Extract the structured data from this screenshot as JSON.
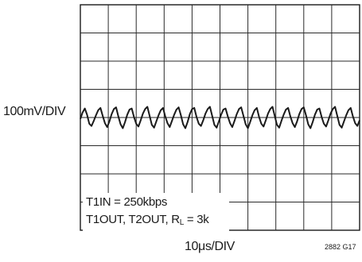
{
  "chart_data": {
    "type": "line",
    "title": "",
    "ylabel": "100mV/DIV",
    "xlabel": "10μs/DIV",
    "figure_code": "2882 G17",
    "grid": true,
    "divisions": {
      "x": 10,
      "y": 8
    },
    "xlim": [
      0,
      100
    ],
    "ylim": [
      -400,
      400
    ],
    "x_unit": "μs",
    "y_unit": "mV",
    "annotations": [
      {
        "text": "T1IN = 250kbps"
      },
      {
        "prefix": "T1OUT, T2OUT, R",
        "subscript": "L",
        "suffix": " = 3k"
      }
    ],
    "series": [
      {
        "x": [
          0,
          0.8,
          1.6,
          2.4,
          3.2,
          4.0,
          4.8,
          5.6,
          6.4,
          7.2,
          8.0,
          8.8,
          9.6,
          10.4,
          11.2,
          12.0,
          12.8,
          13.6,
          14.4,
          15.2,
          16.0,
          16.8,
          17.6,
          18.4,
          19.2,
          20.0,
          20.8,
          21.6,
          22.4,
          23.2,
          24.0,
          24.8,
          25.6,
          26.4,
          27.2,
          28.0,
          28.8,
          29.6,
          30.4,
          31.2,
          32.0,
          32.8,
          33.6,
          34.4,
          35.2,
          36.0,
          36.8,
          37.6,
          38.4,
          39.2,
          40.0,
          40.8,
          41.6,
          42.4,
          43.2,
          44.0,
          44.8,
          45.6,
          46.4,
          47.2,
          48.0,
          48.8,
          49.6,
          50.4,
          51.2,
          52.0,
          52.8,
          53.6,
          54.4,
          55.2,
          56.0,
          56.8,
          57.6,
          58.4,
          59.2,
          60.0,
          60.8,
          61.6,
          62.4,
          63.2,
          64.0,
          64.8,
          65.6,
          66.4,
          67.2,
          68.0,
          68.8,
          69.6,
          70.4,
          71.2,
          72.0,
          72.8,
          73.6,
          74.4,
          75.2,
          76.0,
          76.8,
          77.6,
          78.4,
          79.2,
          80.0,
          80.8,
          81.6,
          82.4,
          83.2,
          84.0,
          84.8,
          85.6,
          86.4,
          87.2,
          88.0,
          88.8,
          89.6,
          90.4,
          91.2,
          92.0,
          92.8,
          93.6,
          94.4,
          95.2,
          96.0,
          96.8,
          97.6,
          98.4,
          99.2,
          100.0
        ],
        "y": [
          -5,
          18,
          32,
          10,
          -22,
          -30,
          -12,
          8,
          26,
          34,
          6,
          -20,
          -34,
          -14,
          12,
          30,
          36,
          4,
          -24,
          -38,
          -16,
          10,
          28,
          32,
          2,
          -22,
          -32,
          -10,
          14,
          30,
          38,
          6,
          -26,
          -36,
          -14,
          8,
          26,
          34,
          4,
          -20,
          -34,
          -12,
          10,
          28,
          36,
          8,
          -24,
          -38,
          -16,
          12,
          30,
          34,
          2,
          -22,
          -30,
          -10,
          14,
          30,
          38,
          6,
          -26,
          -36,
          -14,
          10,
          28,
          32,
          4,
          -20,
          -34,
          -12,
          12,
          30,
          36,
          6,
          -24,
          -38,
          -16,
          8,
          26,
          34,
          2,
          -22,
          -32,
          -10,
          14,
          30,
          38,
          6,
          -26,
          -36,
          -12,
          10,
          28,
          34,
          4,
          -20,
          -34,
          -14,
          12,
          30,
          36,
          8,
          -24,
          -38,
          -16,
          10,
          28,
          32,
          2,
          -22,
          -32,
          -10,
          14,
          30,
          38,
          6,
          -26,
          -36,
          -14,
          8,
          26,
          34,
          4,
          -20,
          -30,
          -10
        ]
      }
    ]
  }
}
